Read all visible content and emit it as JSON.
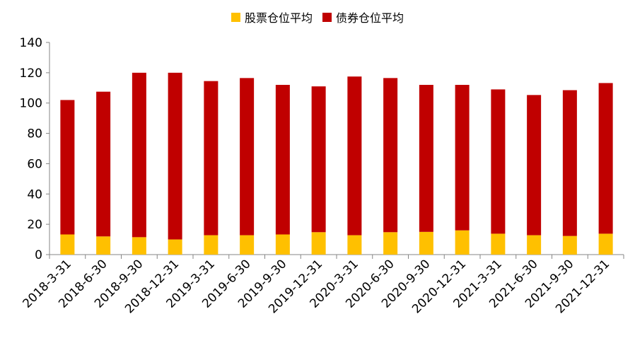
{
  "chart_data": {
    "type": "bar",
    "stacked": true,
    "categories": [
      "2018-3-31",
      "2018-6-30",
      "2018-9-30",
      "2018-12-31",
      "2019-3-31",
      "2019-6-30",
      "2019-9-30",
      "2019-12-31",
      "2020-3-31",
      "2020-6-30",
      "2020-9-30",
      "2020-12-31",
      "2021-3-31",
      "2021-6-30",
      "2021-9-30",
      "2021-12-31"
    ],
    "series": [
      {
        "name": "股票仓位平均",
        "color": "#FFC000",
        "values": [
          13.3,
          12.0,
          11.5,
          10.0,
          12.8,
          12.8,
          13.3,
          14.8,
          12.8,
          14.8,
          15.0,
          16.0,
          13.8,
          12.8,
          12.3,
          13.8
        ]
      },
      {
        "name": "债券仓位平均",
        "color": "#C00000",
        "values": [
          88.7,
          95.5,
          108.5,
          110.0,
          101.7,
          103.7,
          98.7,
          96.2,
          104.7,
          101.7,
          97.0,
          96.0,
          95.2,
          92.5,
          96.2,
          99.4
        ]
      }
    ],
    "ylim": [
      0,
      140
    ],
    "yticks": [
      "0",
      "20",
      "40",
      "60",
      "80",
      "100",
      "120",
      "140"
    ],
    "grid": false,
    "legend_position": "top-center"
  }
}
